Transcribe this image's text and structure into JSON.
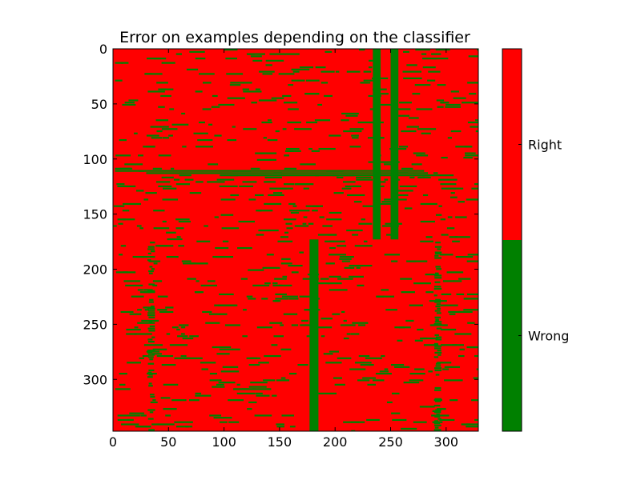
{
  "chart_data": {
    "type": "heatmap",
    "title": "Error on examples depending on the classifier",
    "xlabel": "",
    "ylabel": "",
    "x_range": [
      0,
      329
    ],
    "y_range": [
      0,
      347
    ],
    "y_inverted": true,
    "x_ticks": [
      "0",
      "50",
      "100",
      "150",
      "200",
      "250",
      "300"
    ],
    "y_ticks": [
      "0",
      "50",
      "100",
      "150",
      "200",
      "250",
      "300"
    ],
    "grid": false,
    "colormap": {
      "type": "discrete",
      "classes": [
        {
          "label": "Wrong",
          "color": "#008000"
        },
        {
          "label": "Right",
          "color": "#ff0000"
        }
      ]
    },
    "background_class": "Right",
    "solid_wrong_columns": [
      {
        "x_start": 234,
        "x_end": 241,
        "y_start": 0,
        "y_end": 173
      },
      {
        "x_start": 250,
        "x_end": 257,
        "y_start": 0,
        "y_end": 173
      },
      {
        "x_start": 177,
        "x_end": 185,
        "y_start": 173,
        "y_end": 347
      }
    ],
    "dense_wrong_bands": [
      {
        "x_start": 31,
        "x_end": 38,
        "y_start": 173,
        "y_end": 347
      },
      {
        "x_start": 289,
        "x_end": 296,
        "y_start": 173,
        "y_end": 347
      },
      {
        "x_start": 0,
        "x_end": 329,
        "y_start": 108,
        "y_end": 118
      }
    ]
  }
}
